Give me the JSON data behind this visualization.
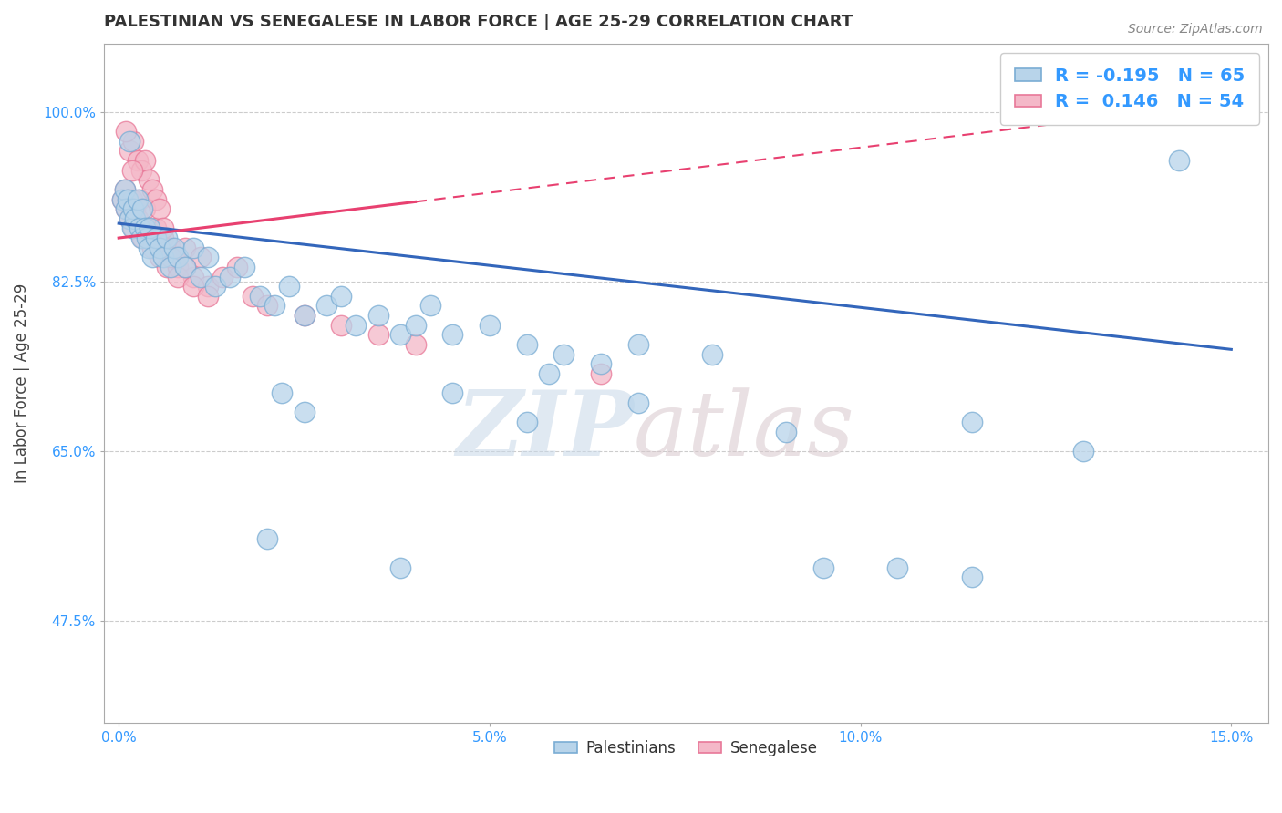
{
  "title": "PALESTINIAN VS SENEGALESE IN LABOR FORCE | AGE 25-29 CORRELATION CHART",
  "source": "Source: ZipAtlas.com",
  "ylabel": "In Labor Force | Age 25-29",
  "xlabel_vals": [
    0.0,
    5.0,
    10.0,
    15.0
  ],
  "xlim": [
    -0.2,
    15.5
  ],
  "ylim": [
    37.0,
    107.0
  ],
  "yticks": [
    47.5,
    65.0,
    82.5,
    100.0
  ],
  "ytick_labels": [
    "47.5%",
    "65.0%",
    "82.5%",
    "100.0%"
  ],
  "blue_color": "#b8d4ea",
  "pink_color": "#f4b8c8",
  "blue_edge": "#7aadd4",
  "pink_edge": "#e87898",
  "blue_line_color": "#3366bb",
  "pink_line_color": "#e84070",
  "background_color": "#ffffff",
  "grid_color": "#cccccc",
  "title_color": "#333333",
  "axis_label_color": "#444444",
  "tick_label_color": "#3399ff",
  "blue_trend": [
    0.0,
    15.0,
    88.5,
    75.5
  ],
  "pink_trend": [
    0.0,
    15.0,
    87.0,
    101.0
  ],
  "palestinians_x": [
    0.05,
    0.08,
    0.1,
    0.12,
    0.15,
    0.15,
    0.18,
    0.2,
    0.22,
    0.25,
    0.28,
    0.3,
    0.32,
    0.35,
    0.38,
    0.4,
    0.42,
    0.45,
    0.5,
    0.55,
    0.6,
    0.65,
    0.7,
    0.75,
    0.8,
    0.9,
    1.0,
    1.1,
    1.2,
    1.3,
    1.5,
    1.7,
    1.9,
    2.1,
    2.3,
    2.5,
    2.8,
    3.0,
    3.2,
    3.5,
    3.8,
    4.0,
    4.2,
    4.5,
    5.0,
    5.5,
    6.0,
    6.5,
    7.0,
    8.0,
    9.5,
    10.5,
    11.5,
    3.8,
    5.8,
    2.2,
    2.5,
    5.5,
    7.0,
    9.0,
    11.5,
    13.0,
    14.3,
    2.0,
    4.5
  ],
  "palestinians_y": [
    91,
    92,
    90,
    91,
    89,
    97,
    88,
    90,
    89,
    91,
    88,
    87,
    90,
    88,
    87,
    86,
    88,
    85,
    87,
    86,
    85,
    87,
    84,
    86,
    85,
    84,
    86,
    83,
    85,
    82,
    83,
    84,
    81,
    80,
    82,
    79,
    80,
    81,
    78,
    79,
    77,
    78,
    80,
    77,
    78,
    76,
    75,
    74,
    76,
    75,
    53,
    53,
    52,
    53,
    73,
    71,
    69,
    68,
    70,
    67,
    68,
    65,
    95,
    56,
    71
  ],
  "senegalese_x": [
    0.05,
    0.08,
    0.1,
    0.12,
    0.15,
    0.18,
    0.2,
    0.22,
    0.25,
    0.28,
    0.3,
    0.32,
    0.35,
    0.38,
    0.4,
    0.45,
    0.5,
    0.55,
    0.6,
    0.65,
    0.7,
    0.75,
    0.8,
    0.9,
    1.0,
    1.1,
    1.2,
    1.4,
    1.6,
    1.8,
    2.0,
    2.5,
    3.0,
    3.5,
    4.0,
    0.15,
    0.2,
    0.25,
    0.3,
    0.35,
    0.4,
    0.45,
    0.5,
    0.55,
    0.6,
    0.7,
    0.8,
    0.9,
    1.0,
    1.2,
    0.1,
    0.18,
    0.28,
    6.5
  ],
  "senegalese_y": [
    91,
    92,
    90,
    91,
    89,
    91,
    88,
    90,
    89,
    91,
    88,
    87,
    90,
    88,
    87,
    86,
    88,
    85,
    87,
    84,
    86,
    85,
    84,
    86,
    83,
    85,
    82,
    83,
    84,
    81,
    80,
    79,
    78,
    77,
    76,
    96,
    97,
    95,
    94,
    95,
    93,
    92,
    91,
    90,
    88,
    85,
    83,
    84,
    82,
    81,
    98,
    94,
    88,
    73
  ]
}
